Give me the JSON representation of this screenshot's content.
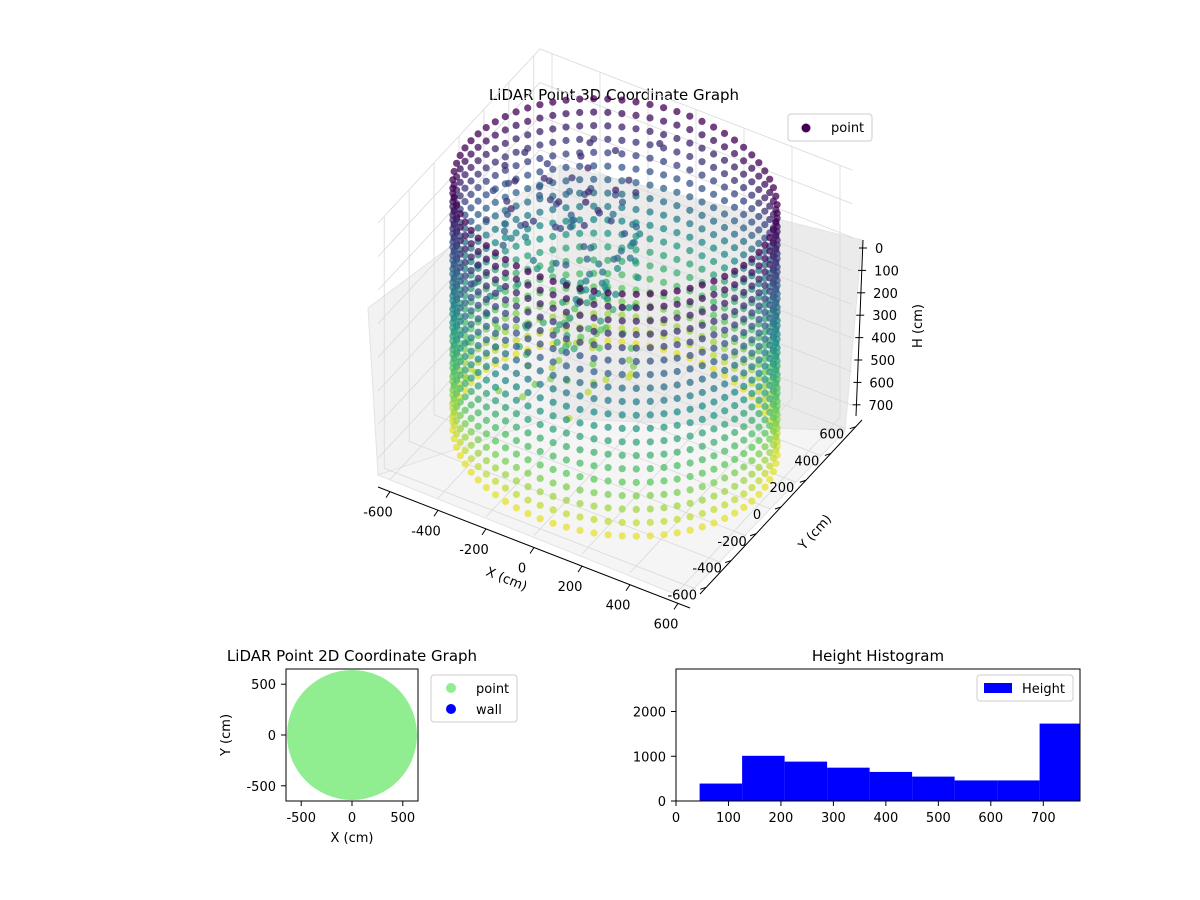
{
  "colors": {
    "viridis_dark": "#440154",
    "viridis_mid": "#21918c",
    "viridis_light": "#fde725",
    "point_2d": "#90ee90",
    "wall": "#0000ff",
    "hist_bar": "#0000ff"
  },
  "chart_data": [
    {
      "type": "scatter",
      "projection": "3d",
      "title": "LiDAR Point 3D Coordinate Graph",
      "xlabel": "X (cm)",
      "ylabel": "Y (cm)",
      "zlabel": "H (cm)",
      "xlim": [
        -650,
        650
      ],
      "ylim": [
        -650,
        650
      ],
      "zlim": [
        750,
        0
      ],
      "z_inverted": true,
      "xticks": [
        "-600",
        "-400",
        "-200",
        "0",
        "200",
        "400",
        "600"
      ],
      "yticks": [
        "-600",
        "-400",
        "-200",
        "0",
        "200",
        "400",
        "600"
      ],
      "zticks": [
        "0",
        "100",
        "200",
        "300",
        "400",
        "500",
        "600",
        "700"
      ],
      "colormap": "viridis",
      "series": [
        {
          "name": "point"
        }
      ],
      "legend": "top-right",
      "wall_radius": 600,
      "wall_height": [
        0,
        720
      ],
      "grid": true
    },
    {
      "type": "scatter",
      "title": "LiDAR Point 2D Coordinate Graph",
      "xlabel": "X (cm)",
      "ylabel": "Y (cm)",
      "xlim": [
        -650,
        650
      ],
      "ylim": [
        -650,
        650
      ],
      "xticks": [
        "-500",
        "0",
        "500"
      ],
      "yticks": [
        "500",
        "0",
        "-500"
      ],
      "series": [
        {
          "name": "point"
        },
        {
          "name": "wall"
        }
      ],
      "disk_radius": 640,
      "legend": "right-outside"
    },
    {
      "type": "bar",
      "subtype": "histogram",
      "title": "Height Histogram",
      "xlim": [
        0,
        770
      ],
      "ylim": [
        0,
        2950
      ],
      "xticks": [
        "0",
        "100",
        "200",
        "300",
        "400",
        "500",
        "600",
        "700"
      ],
      "yticks": [
        "0",
        "1000",
        "2000"
      ],
      "bin_edges": [
        45,
        126,
        207,
        288,
        369,
        450,
        531,
        612,
        693,
        770
      ],
      "values": [
        390,
        1010,
        880,
        745,
        650,
        545,
        460,
        460,
        1730
      ],
      "series": [
        {
          "name": "Height"
        }
      ],
      "legend": "top-right"
    }
  ]
}
